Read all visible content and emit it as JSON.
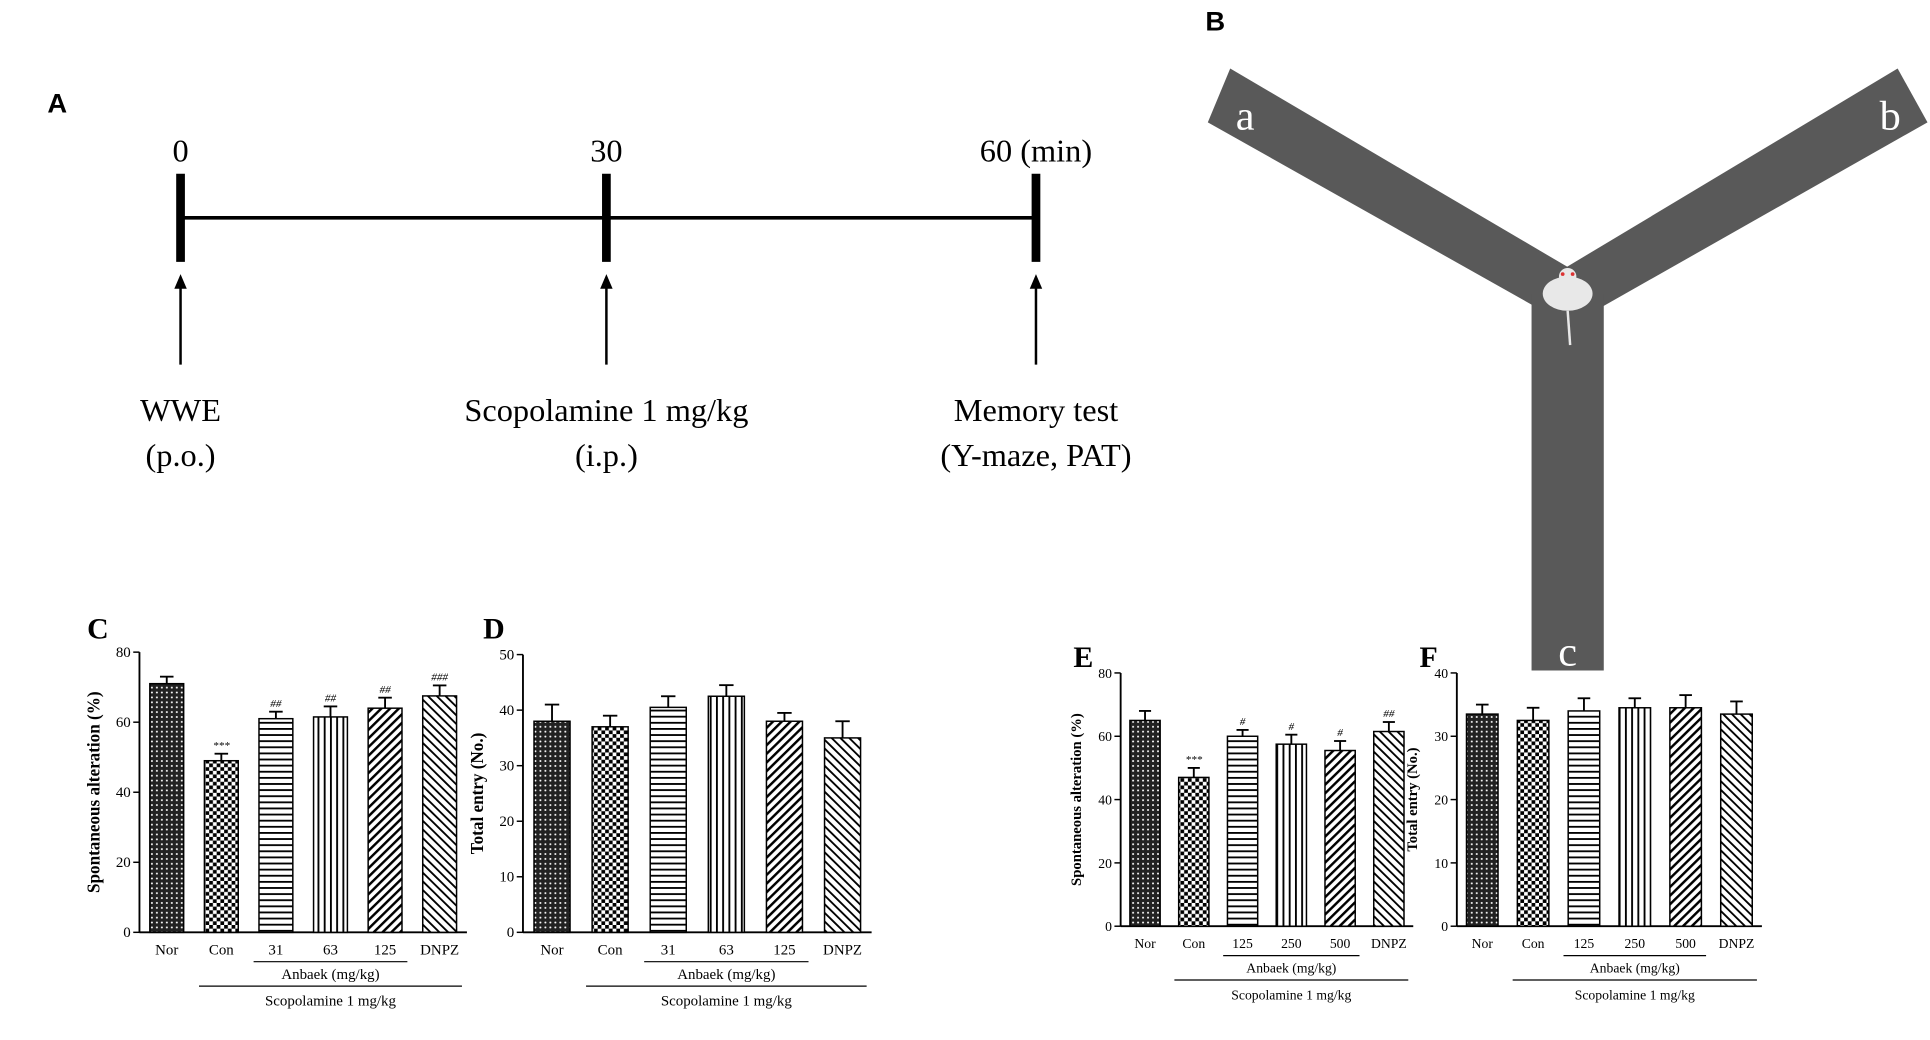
{
  "panel_a": {
    "label": "A",
    "timepoints": [
      "0",
      "30",
      "60 (min)"
    ],
    "events": [
      {
        "line1": "WWE",
        "line2": "(p.o.)"
      },
      {
        "line1": "Scopolamine 1 mg/kg",
        "line2": "(i.p.)"
      },
      {
        "line1": "Memory test",
        "line2": "(Y-maze, PAT)"
      }
    ]
  },
  "panel_b": {
    "label": "B",
    "arms": [
      "a",
      "b",
      "c"
    ]
  },
  "chart_data": [
    {
      "type": "bar",
      "panel_label": "C",
      "ylabel": "Spontaneous alteration (%)",
      "categories": [
        "Nor",
        "Con",
        "31",
        "63",
        "125",
        "DNPZ"
      ],
      "values": [
        71,
        49,
        61,
        61.5,
        64,
        67.5
      ],
      "errors": [
        2,
        2,
        2,
        3,
        3,
        3
      ],
      "annotations": [
        null,
        "***",
        "##",
        "##",
        "##",
        "###"
      ],
      "group_label": "Anbaek (mg/kg)",
      "treatment_label": "Scopolamine 1 mg/kg",
      "ylim": [
        0,
        80
      ],
      "yticks": [
        0,
        20,
        40,
        60,
        80
      ]
    },
    {
      "type": "bar",
      "panel_label": "D",
      "ylabel": "Total entry (No.)",
      "categories": [
        "Nor",
        "Con",
        "31",
        "63",
        "125",
        "DNPZ"
      ],
      "values": [
        38,
        37,
        40.5,
        42.5,
        38,
        35
      ],
      "errors": [
        3,
        2,
        2,
        2,
        1.5,
        3
      ],
      "group_label": "Anbaek (mg/kg)",
      "treatment_label": "Scopolamine 1 mg/kg",
      "ylim": [
        0,
        50
      ],
      "yticks": [
        0,
        10,
        20,
        30,
        40,
        50
      ]
    },
    {
      "type": "bar",
      "panel_label": "E",
      "ylabel": "Spontaneous alteration (%)",
      "categories": [
        "Nor",
        "Con",
        "125",
        "250",
        "500",
        "DNPZ"
      ],
      "values": [
        65,
        47,
        60,
        57.5,
        55.5,
        61.5
      ],
      "errors": [
        3,
        3,
        2,
        3,
        3,
        3
      ],
      "annotations": [
        null,
        "***",
        "#",
        "#",
        "#",
        "##"
      ],
      "group_label": "Anbaek (mg/kg)",
      "treatment_label": "Scopolamine 1 mg/kg",
      "ylim": [
        0,
        80
      ],
      "yticks": [
        0,
        20,
        40,
        60,
        80
      ]
    },
    {
      "type": "bar",
      "panel_label": "F",
      "ylabel": "Total entry (No.)",
      "categories": [
        "Nor",
        "Con",
        "125",
        "250",
        "500",
        "DNPZ"
      ],
      "values": [
        33.5,
        32.5,
        34,
        34.5,
        34.5,
        33.5
      ],
      "errors": [
        1.5,
        2,
        2,
        1.5,
        2,
        2
      ],
      "group_label": "Anbaek (mg/kg)",
      "treatment_label": "Scopolamine 1 mg/kg",
      "ylim": [
        0,
        40
      ],
      "yticks": [
        0,
        10,
        20,
        30,
        40
      ]
    }
  ]
}
